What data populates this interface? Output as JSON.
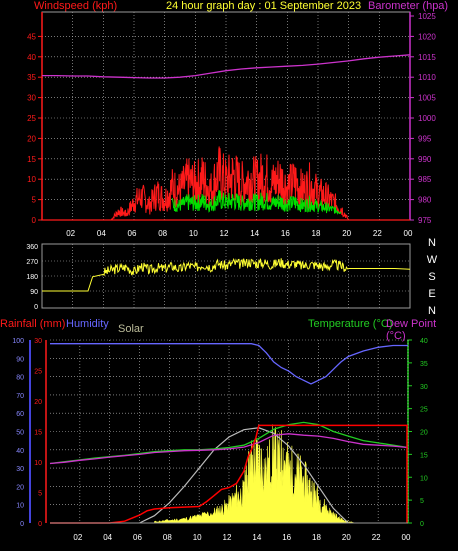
{
  "header": {
    "left_label": "Windspeed (kph)",
    "title": "24 hour graph day : 01 September 2023",
    "right_label": "Barometer (hpa)"
  },
  "colors": {
    "windspeed": "#ff1a1a",
    "gust_green": "#00e000",
    "barometer": "#cc33cc",
    "direction": "#ffff33",
    "humidity": "#6666ff",
    "temperature": "#22cc22",
    "dewpoint": "#cc33cc",
    "rainfall": "#ff0000",
    "solar": "#ffff44",
    "solar_curve": "#bbbbbb",
    "grid": "#c0c0c0"
  },
  "chart_data": [
    {
      "type": "line",
      "x_ticks": [
        "02",
        "04",
        "06",
        "08",
        "10",
        "12",
        "14",
        "16",
        "18",
        "20",
        "22",
        "00"
      ],
      "left_axis": {
        "ticks": [
          "0",
          "5",
          "10",
          "15",
          "20",
          "25",
          "30",
          "35",
          "40",
          "45"
        ],
        "ylim": [
          0,
          50
        ]
      },
      "right_axis": {
        "ticks": [
          "975",
          "980",
          "985",
          "990",
          "995",
          "1000",
          "1005",
          "1010",
          "1015",
          "1020",
          "1025"
        ],
        "ylim": [
          975,
          1025
        ]
      },
      "series": [
        {
          "name": "Windspeed (kph)",
          "axis": "left",
          "x": [
            0,
            2,
            4,
            4.5,
            5,
            5.5,
            6,
            6.5,
            7,
            7.5,
            8,
            8.5,
            9,
            9.5,
            10,
            10.5,
            11,
            11.5,
            12,
            12.5,
            13,
            13.5,
            14,
            14.5,
            15,
            15.5,
            16,
            16.5,
            17,
            17.5,
            18,
            18.5,
            19,
            19.5,
            20,
            22,
            24
          ],
          "y": [
            0,
            0,
            0,
            0,
            3,
            2,
            6,
            8,
            5,
            9,
            7,
            11,
            10,
            13,
            12,
            14,
            10,
            16,
            13,
            15,
            12,
            14,
            13,
            15,
            12,
            14,
            11,
            13,
            10,
            12,
            9,
            8,
            6,
            4,
            0,
            0,
            0
          ]
        },
        {
          "name": "Barometer (hpa)",
          "axis": "right",
          "x": [
            0,
            1,
            2,
            3,
            4,
            5,
            6,
            7,
            8,
            9,
            10,
            11,
            12,
            13,
            14,
            15,
            16,
            17,
            18,
            19,
            20,
            21,
            22,
            23,
            24
          ],
          "y": [
            1010.4,
            1010.4,
            1010.3,
            1010.3,
            1010.1,
            1010,
            1009.9,
            1009.8,
            1009.8,
            1010,
            1010.4,
            1011,
            1011.6,
            1012,
            1012.3,
            1012.5,
            1012.7,
            1012.9,
            1013.2,
            1013.6,
            1014,
            1014.5,
            1014.9,
            1015.2,
            1015.5
          ]
        }
      ]
    },
    {
      "type": "line",
      "x_ticks": [
        "02",
        "04",
        "06",
        "08",
        "10",
        "12",
        "14",
        "16",
        "18",
        "20",
        "22",
        "00"
      ],
      "left_axis": {
        "ticks": [
          "0",
          "90",
          "180",
          "270",
          "360"
        ],
        "ylim": [
          0,
          360
        ]
      },
      "right_axis": {
        "ticks": [
          "N",
          "W",
          "S",
          "E",
          "N"
        ]
      },
      "series": [
        {
          "name": "Wind direction",
          "x": [
            0,
            1,
            2,
            3,
            3.3,
            4,
            4.5,
            5,
            5.5,
            6,
            6.5,
            7,
            7.5,
            8,
            8.5,
            9,
            9.5,
            10,
            10.5,
            11,
            11.5,
            12,
            12.5,
            13,
            13.5,
            14,
            14.5,
            15,
            15.5,
            16,
            16.5,
            17,
            17.5,
            18,
            18.5,
            19,
            19.5,
            20,
            21,
            22,
            23,
            24
          ],
          "y": [
            90,
            90,
            90,
            90,
            175,
            200,
            215,
            225,
            235,
            205,
            240,
            215,
            230,
            225,
            240,
            220,
            245,
            230,
            250,
            235,
            255,
            240,
            260,
            250,
            265,
            255,
            260,
            245,
            265,
            250,
            255,
            240,
            250,
            245,
            235,
            250,
            240,
            225,
            225,
            225,
            225,
            220
          ]
        }
      ]
    },
    {
      "type": "line",
      "legend": [
        "Rainfall (mm)",
        "Humidity",
        "Solar",
        "Temperature (°C)",
        "Dew Point (°C)"
      ],
      "x_ticks": [
        "02",
        "04",
        "06",
        "08",
        "10",
        "12",
        "14",
        "16",
        "18",
        "20",
        "22",
        "00"
      ],
      "humidity_axis": {
        "ticks": [
          "0",
          "10",
          "20",
          "30",
          "40",
          "50",
          "60",
          "70",
          "80",
          "90",
          "100"
        ],
        "ylim": [
          0,
          100
        ]
      },
      "rain_axis": {
        "ticks": [
          "0",
          "5",
          "10",
          "15",
          "20",
          "25",
          "30"
        ],
        "ylim": [
          0,
          30
        ]
      },
      "temp_axis": {
        "ticks": [
          "0",
          "5",
          "10",
          "15",
          "20",
          "25",
          "30",
          "35",
          "40"
        ],
        "ylim": [
          0,
          40
        ]
      },
      "series": [
        {
          "name": "Humidity",
          "axis": "humidity",
          "x": [
            0,
            2,
            4,
            6,
            8,
            10,
            12,
            13.5,
            14,
            14.5,
            15,
            15.5,
            16,
            16.5,
            17,
            17.5,
            18,
            18.5,
            19,
            19.5,
            20,
            21,
            22,
            23,
            24
          ],
          "y": [
            98,
            98,
            98,
            98,
            98,
            98,
            98,
            98,
            97,
            93,
            88,
            85,
            83,
            80,
            78,
            76,
            78,
            80,
            84,
            88,
            91,
            94,
            96,
            97,
            97
          ]
        },
        {
          "name": "Temperature (°C)",
          "axis": "temp",
          "x": [
            0,
            1,
            2,
            3,
            4,
            5,
            6,
            7,
            8,
            9,
            10,
            11,
            12,
            13,
            14,
            15,
            16,
            17,
            18,
            19,
            20,
            21,
            22,
            23,
            24
          ],
          "y": [
            13,
            13.4,
            13.8,
            14.2,
            14.5,
            14.8,
            15.2,
            15.6,
            15.8,
            16,
            16,
            16.2,
            16.5,
            17,
            18.5,
            20.5,
            21.5,
            22,
            21.5,
            20,
            19,
            18,
            17.5,
            17,
            16.5
          ]
        },
        {
          "name": "Dew Point (°C)",
          "axis": "temp",
          "x": [
            0,
            1,
            2,
            3,
            4,
            5,
            6,
            7,
            8,
            9,
            10,
            11,
            12,
            13,
            14,
            15,
            16,
            17,
            18,
            19,
            20,
            21,
            22,
            23,
            24
          ],
          "y": [
            13,
            13.3,
            13.7,
            14,
            14.4,
            14.7,
            15,
            15.4,
            15.6,
            15.8,
            15.9,
            16,
            16.2,
            16.6,
            17.6,
            19.2,
            19.5,
            19.2,
            19,
            18.5,
            17.8,
            17.2,
            17,
            16.8,
            16.5
          ]
        },
        {
          "name": "Rainfall (mm)",
          "axis": "rain",
          "x": [
            0,
            2,
            4,
            5,
            6,
            6.5,
            7,
            8,
            9,
            10,
            10.5,
            11,
            11.5,
            12,
            12.5,
            13,
            13.3,
            13.5,
            13.8,
            14,
            24
          ],
          "y": [
            0,
            0,
            0,
            0.3,
            1.3,
            2,
            2.3,
            2.5,
            2.6,
            2.7,
            3.5,
            4.5,
            5.5,
            5.8,
            6.5,
            8.5,
            11,
            12,
            14,
            16,
            16
          ]
        },
        {
          "name": "Solar (theoretical)",
          "axis": "humidity",
          "x": [
            6,
            7,
            8,
            9,
            10,
            11,
            12,
            13,
            14,
            15,
            16,
            17,
            18,
            19,
            20
          ],
          "y": [
            0,
            4,
            11,
            20,
            30,
            40,
            47,
            51,
            52,
            49,
            42,
            32,
            20,
            8,
            0
          ]
        },
        {
          "name": "Solar",
          "axis": "humidity",
          "x": [
            7,
            8,
            9,
            10,
            11,
            11.5,
            12,
            12.5,
            13,
            13.2,
            13.5,
            14,
            14.5,
            15,
            15.3,
            15.6,
            16,
            16.5,
            17,
            17.5,
            18,
            18.5,
            19,
            19.5,
            20,
            20.5
          ],
          "y": [
            1,
            2,
            3,
            5,
            8,
            10,
            14,
            20,
            22,
            35,
            44,
            48,
            38,
            52,
            44,
            50,
            40,
            38,
            32,
            26,
            18,
            11,
            6,
            3,
            1,
            0
          ]
        }
      ]
    }
  ]
}
